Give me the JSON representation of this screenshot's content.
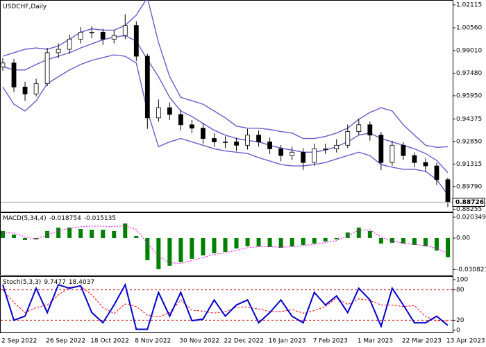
{
  "chart_data": [
    {
      "type": "candlestick",
      "title": "USDCHF,Daily",
      "categories": [
        "2 Sep 2022",
        null,
        null,
        null,
        "26 Sep 2022",
        null,
        null,
        null,
        "18 Oct 2022",
        null,
        null,
        null,
        "8 Nov 2022",
        null,
        null,
        null,
        "30 Nov 2022",
        null,
        null,
        null,
        "22 Dec 2022",
        null,
        null,
        null,
        "16 Jan 2023",
        null,
        null,
        null,
        "7 Feb 2023",
        null,
        null,
        null,
        "1 Mar 2023",
        null,
        null,
        null,
        "22 Mar 2023",
        null,
        null,
        null,
        "13 Apr 2023"
      ],
      "open": [
        0.979,
        0.9817,
        0.9654,
        0.9607,
        0.9677,
        0.9887,
        0.991,
        0.9979,
        1.0026,
        1.0026,
        0.9979,
        1.0003,
        1.0072,
        0.9863,
        0.9445,
        0.9514,
        0.9468,
        0.9398,
        0.9375,
        0.9305,
        0.9282,
        0.9282,
        0.9259,
        0.9328,
        0.9282,
        0.9235,
        0.9189,
        0.9212,
        0.9142,
        0.9235,
        0.9235,
        0.9259,
        0.9352,
        0.9398,
        0.9328,
        0.9142,
        0.9259,
        0.9189,
        0.9142,
        0.9119,
        0.9026
      ],
      "high": [
        0.985,
        0.9845,
        0.969,
        0.971,
        0.992,
        0.995,
        1.001,
        1.006,
        1.0065,
        1.005,
        1.004,
        1.0148,
        1.01,
        0.988,
        0.957,
        0.955,
        0.95,
        0.943,
        0.941,
        0.934,
        0.932,
        0.931,
        0.937,
        0.936,
        0.931,
        0.926,
        0.925,
        0.924,
        0.927,
        0.927,
        0.93,
        0.94,
        0.944,
        0.942,
        0.935,
        0.929,
        0.928,
        0.921,
        0.917,
        0.914,
        0.904
      ],
      "low": [
        0.9765,
        0.962,
        0.956,
        0.959,
        0.966,
        0.985,
        0.988,
        0.995,
        0.9985,
        0.994,
        0.995,
        0.998,
        0.983,
        0.937,
        0.942,
        0.943,
        0.936,
        0.934,
        0.927,
        0.925,
        0.924,
        0.922,
        0.923,
        0.925,
        0.92,
        0.915,
        0.916,
        0.909,
        0.912,
        0.92,
        0.921,
        0.924,
        0.933,
        0.929,
        0.909,
        0.912,
        0.916,
        0.911,
        0.908,
        0.899,
        0.884
      ],
      "close": [
        0.9817,
        0.9654,
        0.9607,
        0.9677,
        0.9887,
        0.991,
        0.9979,
        1.0026,
        1.0026,
        0.9979,
        1.0003,
        1.0072,
        0.9863,
        0.9445,
        0.9514,
        0.9468,
        0.9398,
        0.9375,
        0.9305,
        0.9282,
        0.9282,
        0.9259,
        0.9328,
        0.9282,
        0.9235,
        0.9189,
        0.9212,
        0.9142,
        0.9235,
        0.9235,
        0.9259,
        0.9352,
        0.9398,
        0.9328,
        0.9142,
        0.9259,
        0.9189,
        0.9142,
        0.9119,
        0.9026,
        0.88726
      ],
      "up_color": "#ffffff",
      "down_color": "#000000",
      "overlays": [
        {
          "color": "#6a5acd",
          "values": [
            0.9863,
            0.9887,
            0.991,
            0.9919,
            0.991,
            0.9933,
            0.9979,
            1.0026,
            1.0049,
            1.004,
            1.004,
            1.0072,
            1.0142,
            1.026,
            0.9956,
            0.9724,
            0.9584,
            0.9561,
            0.9538,
            0.9491,
            0.9445,
            0.9389,
            0.9375,
            0.9375,
            0.9366,
            0.9352,
            0.9342,
            0.9305,
            0.9305,
            0.9319,
            0.9342,
            0.9375,
            0.9435,
            0.9482,
            0.9514,
            0.9491,
            0.9398,
            0.9328,
            0.9259,
            0.9245,
            0.9249
          ]
        },
        {
          "color": "#6a5acd",
          "values": [
            0.9793,
            0.977,
            0.977,
            0.9807,
            0.984,
            0.9863,
            0.9887,
            0.9919,
            0.9947,
            0.9975,
            0.9993,
            1.0003,
            0.9965,
            0.984,
            0.9724,
            0.9584,
            0.9491,
            0.9454,
            0.9407,
            0.9361,
            0.9328,
            0.9305,
            0.9291,
            0.9282,
            0.9259,
            0.924,
            0.9226,
            0.9212,
            0.9212,
            0.9226,
            0.9249,
            0.9282,
            0.9328,
            0.9342,
            0.9305,
            0.9282,
            0.9259,
            0.9235,
            0.9203,
            0.9156,
            0.9073
          ]
        },
        {
          "color": "#6a5acd",
          "values": [
            0.9654,
            0.9538,
            0.9491,
            0.9561,
            0.9677,
            0.9724,
            0.977,
            0.9807,
            0.9835,
            0.9854,
            0.9872,
            0.9863,
            0.9817,
            0.9491,
            0.9249,
            0.9282,
            0.9305,
            0.9282,
            0.9259,
            0.9235,
            0.9221,
            0.9212,
            0.9203,
            0.9175,
            0.9152,
            0.9128,
            0.9119,
            0.9119,
            0.9128,
            0.9142,
            0.9166,
            0.9189,
            0.9212,
            0.9189,
            0.9128,
            0.911,
            0.9096,
            0.9096,
            0.9082,
            0.9026,
            0.8924
          ]
        }
      ],
      "ylim": [
        0.8818,
        1.0235
      ],
      "yticks": [
        1.02115,
        {
          "value": 1.0056,
          "label": "1.00560"
        },
        {
          "value": 0.9901,
          "label": "0.99010"
        },
        {
          "value": 0.9748,
          "label": "0.97480"
        },
        {
          "value": 0.9595,
          "label": "0.95950"
        },
        0.94375,
        {
          "value": 0.9285,
          "label": "0.92850"
        },
        0.91315,
        {
          "value": 0.8979,
          "label": "0.89790"
        },
        0.88255
      ]
    },
    {
      "type": "macd",
      "title": "MACD(5,34,4)",
      "color": "#008000",
      "values": [
        0.0068,
        0.0034,
        -0.002,
        -0.0014,
        0.0068,
        0.0102,
        0.0102,
        0.0088,
        0.0081,
        0.0081,
        0.0068,
        0.0142,
        0.002,
        -0.0217,
        -0.0305,
        -0.0271,
        -0.0237,
        -0.0203,
        -0.017,
        -0.0149,
        -0.0136,
        -0.0102,
        -0.0081,
        -0.0081,
        -0.0088,
        -0.0095,
        -0.0081,
        -0.0068,
        -0.0054,
        -0.0034,
        -0.0014,
        0.0054,
        0.0102,
        0.0068,
        -0.0054,
        -0.0047,
        -0.0054,
        -0.0068,
        -0.0081,
        -0.0122,
        -0.018754
      ],
      "signal_color": "#ff00ff",
      "signal": [
        0.005,
        0.005,
        0.001,
        -0.001,
        0.003,
        0.007,
        0.0095,
        0.011,
        0.0115,
        0.0115,
        0.011,
        0.012,
        0.008,
        -0.005,
        -0.018,
        -0.024,
        -0.025,
        -0.022,
        -0.019,
        -0.016,
        -0.0145,
        -0.012,
        -0.0095,
        -0.0085,
        -0.0085,
        -0.009,
        -0.0085,
        -0.0075,
        -0.0062,
        -0.0045,
        -0.0025,
        0.002,
        0.0075,
        0.008,
        0.001,
        -0.003,
        -0.005,
        -0.0062,
        -0.0075,
        -0.01,
        -0.015135
      ],
      "ylim": [
        -0.0353,
        0.0244
      ],
      "yticks": [
        0.020349,
        {
          "value": 0,
          "label": "0.00"
        },
        -0.030821
      ]
    },
    {
      "type": "stoch",
      "title": "Stoch(5,3,3)",
      "color": "#0000cd",
      "values": [
        90,
        20,
        28,
        83,
        35,
        90,
        83,
        88,
        35,
        15,
        50,
        90,
        2,
        2,
        75,
        28,
        75,
        19,
        22,
        60,
        28,
        50,
        60,
        15,
        35,
        60,
        28,
        15,
        75,
        50,
        68,
        35,
        83,
        60,
        8,
        83,
        50,
        15,
        15,
        28,
        9.7477
      ],
      "signal_color": "#ff0000",
      "signal": [
        80,
        55,
        35,
        45,
        50,
        70,
        85,
        87,
        70,
        45,
        33,
        52,
        47,
        30,
        26,
        35,
        60,
        40,
        38,
        34,
        37,
        46,
        46,
        42,
        37,
        37,
        41,
        34,
        39,
        47,
        64,
        51,
        62,
        59,
        50,
        50,
        47,
        49,
        27,
        19,
        18.4037
      ],
      "level_color": "#cc0000",
      "ylim": [
        0,
        100
      ],
      "yticks": [
        100,
        80,
        20,
        0
      ]
    }
  ]
}
